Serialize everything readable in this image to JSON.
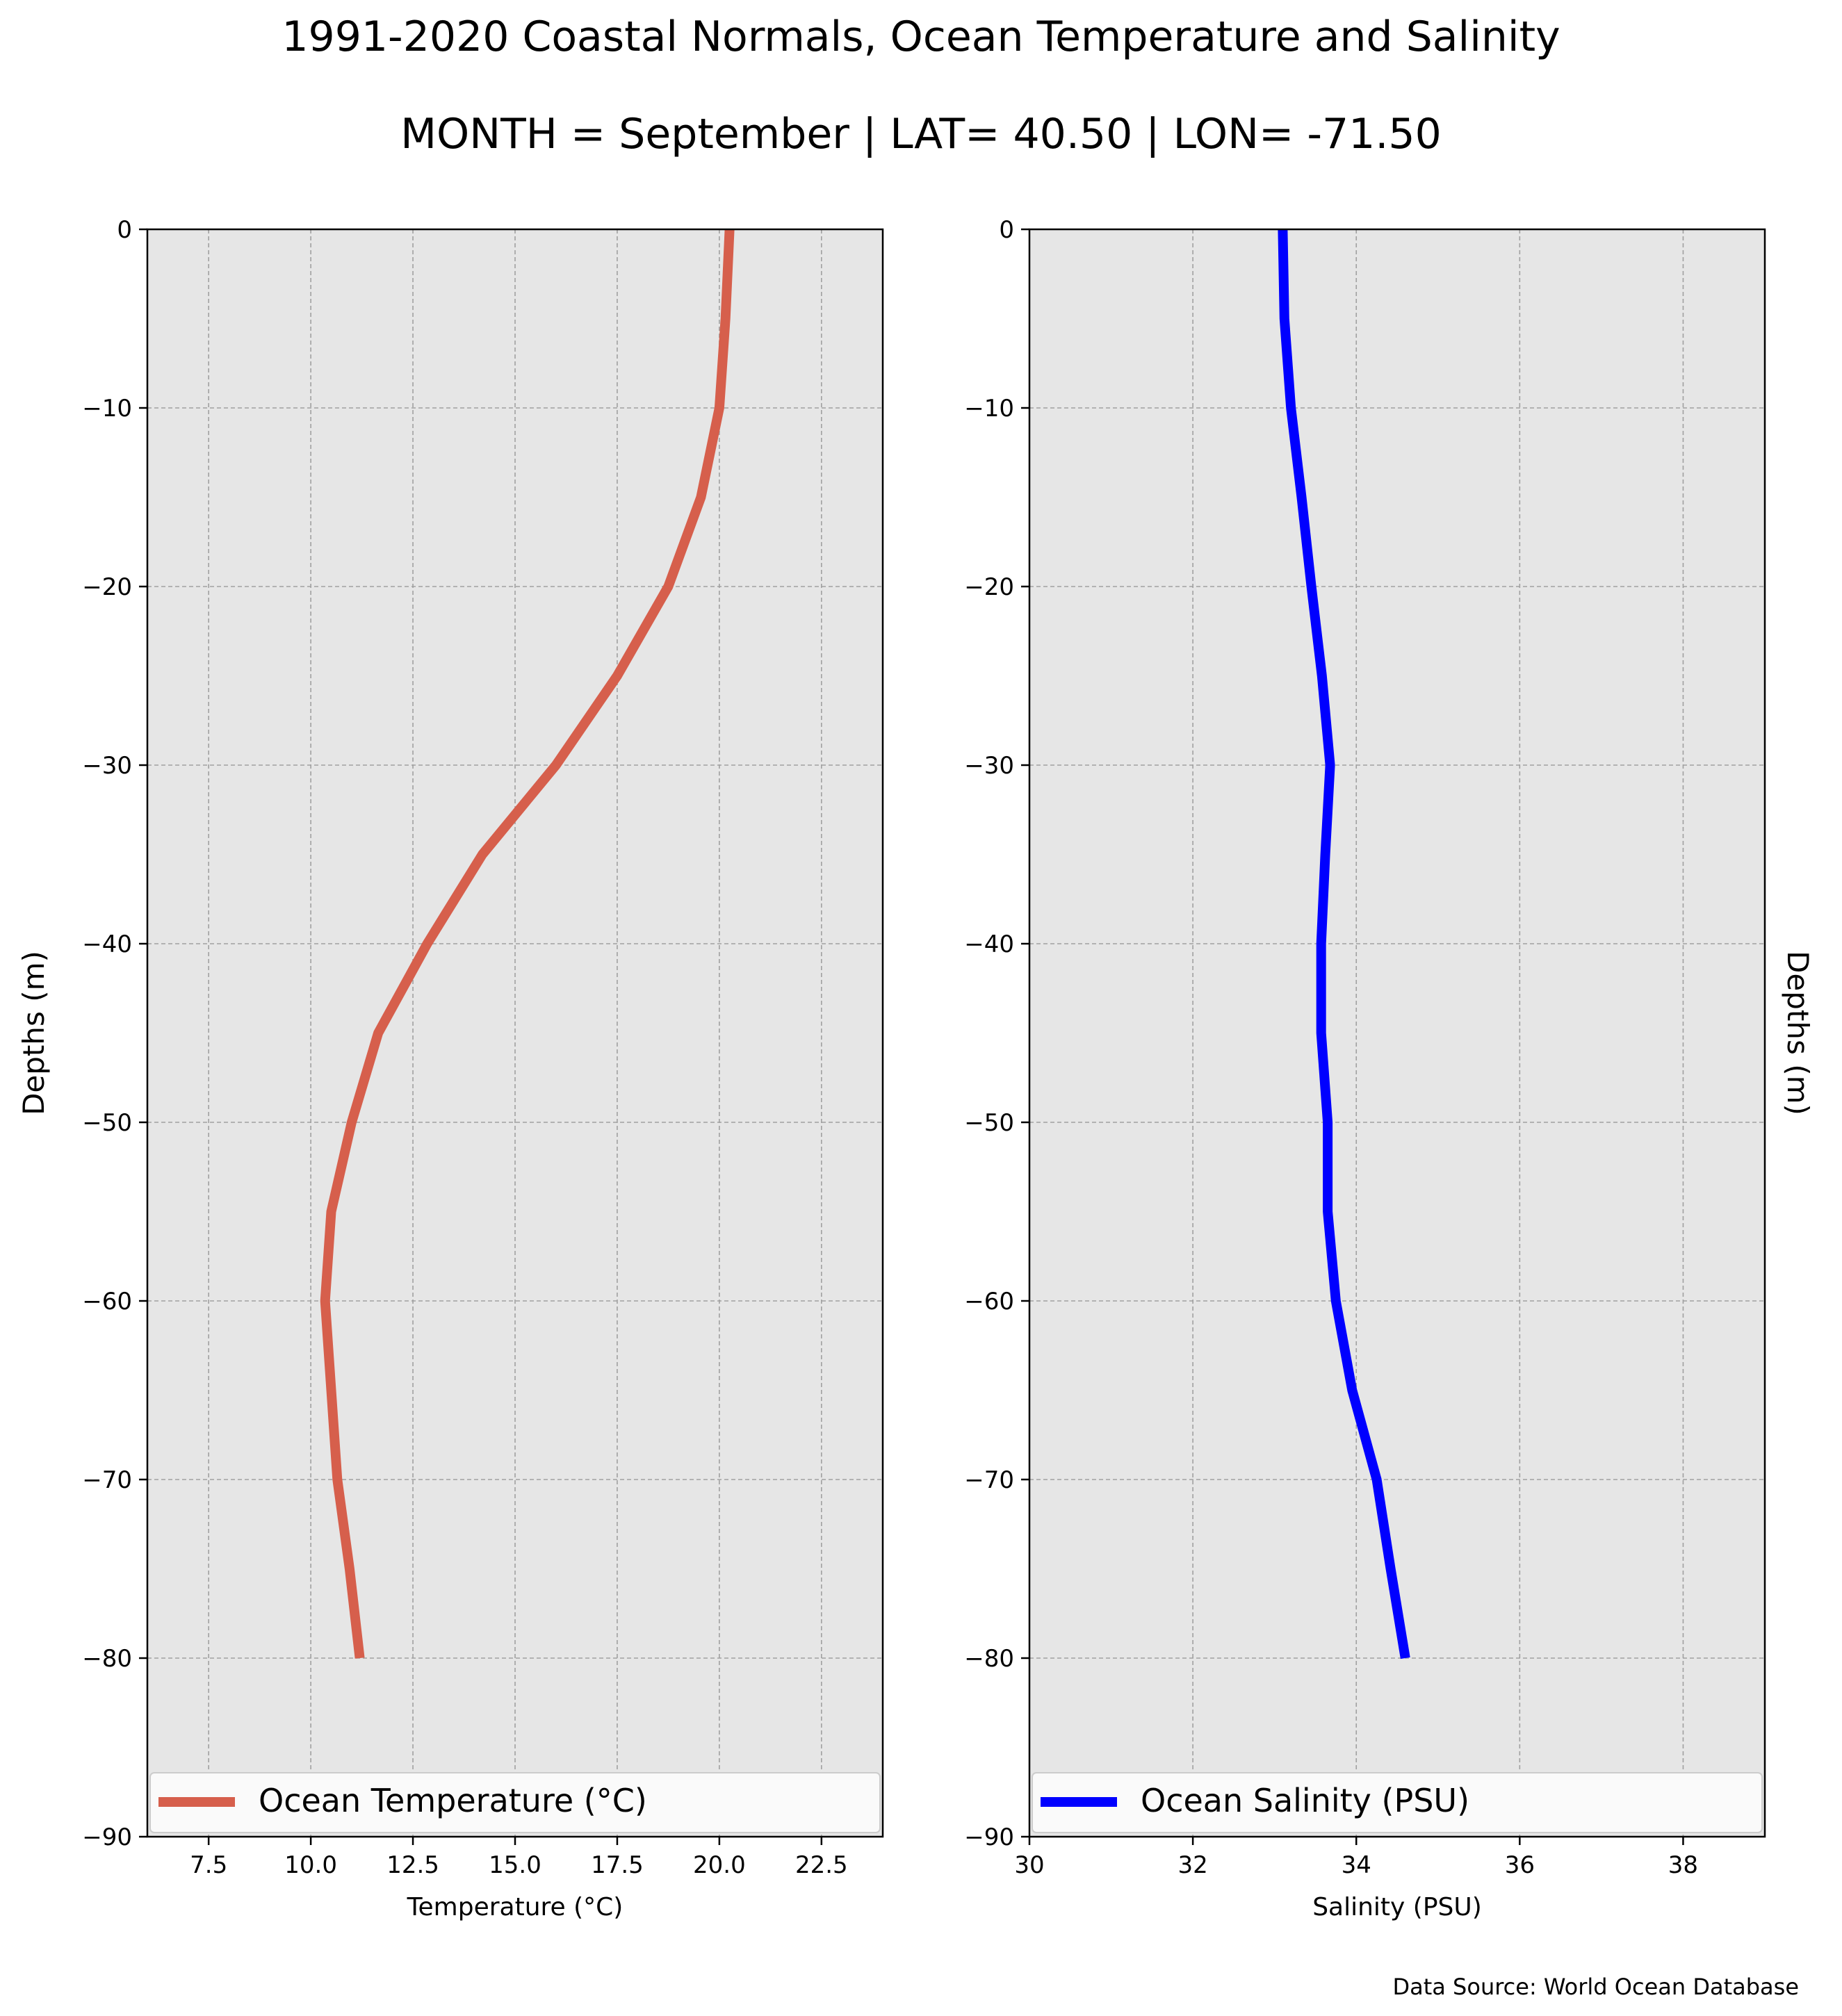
{
  "header": {
    "title": "1991-2020 Coastal Normals, Ocean Temperature and Salinity",
    "subtitle": "MONTH = September | LAT= 40.50 | LON= -71.50"
  },
  "footer": {
    "source": "Data Source: World Ocean Database"
  },
  "chart_data": [
    {
      "type": "line",
      "xlabel": "Temperature ($^\\circ$C)",
      "xlabel_display": "Temperature (°C)",
      "ylabel": "Depths (m)",
      "xlim": [
        6.0,
        24.0
      ],
      "ylim": [
        -90,
        0
      ],
      "xticks": [
        7.5,
        10.0,
        12.5,
        15.0,
        17.5,
        20.0,
        22.5
      ],
      "xtick_labels": [
        "7.5",
        "10.0",
        "12.5",
        "15.0",
        "17.5",
        "20.0",
        "22.5"
      ],
      "yticks": [
        0,
        -10,
        -20,
        -30,
        -40,
        -50,
        -60,
        -70,
        -80,
        -90
      ],
      "ytick_labels": [
        "0",
        "−10",
        "−20",
        "−30",
        "−40",
        "−50",
        "−60",
        "−70",
        "−80",
        "−90"
      ],
      "grid": true,
      "legend_position": "bottom",
      "series": [
        {
          "name": "Ocean Temperature (°C)",
          "color": "#d65f4c",
          "x": [
            20.25,
            20.15,
            20.0,
            19.55,
            18.75,
            17.5,
            16.0,
            14.2,
            12.85,
            11.65,
            11.0,
            10.5,
            10.35,
            10.65,
            10.95,
            11.2
          ],
          "y": [
            0,
            -5,
            -10,
            -15,
            -20,
            -25,
            -30,
            -35,
            -40,
            -45,
            -50,
            -55,
            -60,
            -70,
            -75,
            -80
          ]
        }
      ]
    },
    {
      "type": "line",
      "xlabel": "Salinity (PSU)",
      "ylabel": "Depths (m)",
      "xlim": [
        30,
        39
      ],
      "ylim": [
        -90,
        0
      ],
      "xticks": [
        30,
        32,
        34,
        36,
        38
      ],
      "xtick_labels": [
        "30",
        "32",
        "34",
        "36",
        "38"
      ],
      "yticks": [
        0,
        -10,
        -20,
        -30,
        -40,
        -50,
        -60,
        -70,
        -80,
        -90
      ],
      "ytick_labels": [
        "0",
        "−10",
        "−20",
        "−30",
        "−40",
        "−50",
        "−60",
        "−70",
        "−80",
        "−90"
      ],
      "grid": true,
      "legend_position": "bottom",
      "series": [
        {
          "name": "Ocean Salinity (PSU)",
          "color": "#0000ff",
          "x": [
            33.1,
            33.12,
            33.2,
            33.33,
            33.45,
            33.58,
            33.68,
            33.62,
            33.57,
            33.57,
            33.65,
            33.65,
            33.75,
            33.95,
            34.25,
            34.42,
            34.6
          ],
          "y": [
            0,
            -5,
            -10,
            -15,
            -20,
            -25,
            -30,
            -35,
            -40,
            -45,
            -50,
            -55,
            -60,
            -65,
            -70,
            -75,
            -80
          ]
        }
      ]
    }
  ]
}
